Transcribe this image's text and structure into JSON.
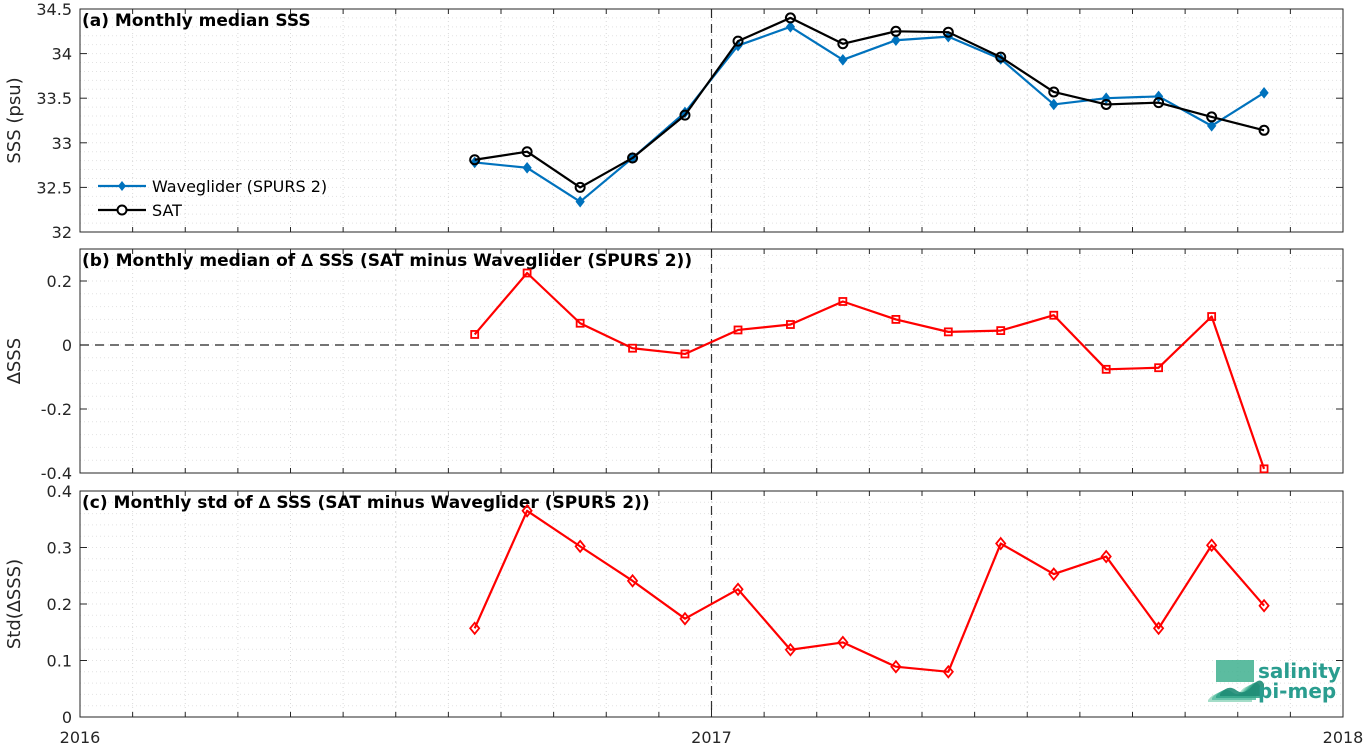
{
  "chart_data": [
    {
      "id": "a",
      "type": "line",
      "title": "(a) Monthly median SSS",
      "ylabel": "SSS (psu)",
      "xlim": [
        2016.0,
        2018.0
      ],
      "ylim": [
        32,
        34.5
      ],
      "yticks": [
        "32",
        "32.5",
        "33",
        "33.5",
        "34",
        "34.5"
      ],
      "ytick_values": [
        32,
        32.5,
        33,
        33.5,
        34,
        34.5
      ],
      "grid": true,
      "legend_position": "left",
      "series": [
        {
          "name": "Waveglider (SPURS 2)",
          "color": "#0072bd",
          "marker": "diamond-filled",
          "x": [
            2016.625,
            2016.708,
            2016.792,
            2016.875,
            2016.958,
            2017.042,
            2017.125,
            2017.208,
            2017.292,
            2017.375,
            2017.458,
            2017.542,
            2017.625,
            2017.708,
            2017.792,
            2017.875
          ],
          "values": [
            32.78,
            32.72,
            32.34,
            32.83,
            33.34,
            34.09,
            34.3,
            33.93,
            34.15,
            34.19,
            33.94,
            33.43,
            33.5,
            33.52,
            33.19,
            33.56
          ]
        },
        {
          "name": "SAT",
          "color": "#000000",
          "marker": "circle-open",
          "x": [
            2016.625,
            2016.708,
            2016.792,
            2016.875,
            2016.958,
            2017.042,
            2017.125,
            2017.208,
            2017.292,
            2017.375,
            2017.458,
            2017.542,
            2017.625,
            2017.708,
            2017.792,
            2017.875
          ],
          "values": [
            32.81,
            32.9,
            32.5,
            32.83,
            33.31,
            34.14,
            34.4,
            34.11,
            34.25,
            34.24,
            33.96,
            33.57,
            33.43,
            33.45,
            33.29,
            33.14
          ]
        }
      ]
    },
    {
      "id": "b",
      "type": "line",
      "title": "(b) Monthly median of ∆ SSS (SAT minus Waveglider (SPURS 2))",
      "ylabel": "∆SSS",
      "xlim": [
        2016.0,
        2018.0
      ],
      "ylim": [
        -0.4,
        0.3
      ],
      "yticks": [
        "-0.4",
        "-0.2",
        "0",
        "0.2"
      ],
      "ytick_values": [
        -0.4,
        -0.2,
        0,
        0.2
      ],
      "grid": true,
      "zero_line": true,
      "series": [
        {
          "color": "#ff0000",
          "marker": "square-open",
          "x": [
            2016.625,
            2016.708,
            2016.792,
            2016.875,
            2016.958,
            2017.042,
            2017.125,
            2017.208,
            2017.292,
            2017.375,
            2017.458,
            2017.542,
            2017.625,
            2017.708,
            2017.792,
            2017.875
          ],
          "values": [
            0.033,
            0.225,
            0.068,
            -0.01,
            -0.028,
            0.047,
            0.064,
            0.136,
            0.08,
            0.041,
            0.045,
            0.093,
            -0.076,
            -0.071,
            0.089,
            -0.387
          ]
        }
      ]
    },
    {
      "id": "c",
      "type": "line",
      "title": "(c) Monthly std of ∆ SSS (SAT minus Waveglider (SPURS 2))",
      "ylabel": "Std(∆SSS)",
      "xlim": [
        2016.0,
        2018.0
      ],
      "ylim": [
        0,
        0.4
      ],
      "yticks": [
        "0",
        "0.1",
        "0.2",
        "0.3",
        "0.4"
      ],
      "ytick_values": [
        0,
        0.1,
        0.2,
        0.3,
        0.4
      ],
      "xticks": [
        "2016",
        "2017",
        "2018"
      ],
      "xtick_values": [
        2016.0,
        2017.0,
        2018.0
      ],
      "grid": true,
      "series": [
        {
          "color": "#ff0000",
          "marker": "diamond-open",
          "x": [
            2016.625,
            2016.708,
            2016.792,
            2016.875,
            2016.958,
            2017.042,
            2017.125,
            2017.208,
            2017.292,
            2017.375,
            2017.458,
            2017.542,
            2017.625,
            2017.708,
            2017.792,
            2017.875
          ],
          "values": [
            0.157,
            0.365,
            0.302,
            0.241,
            0.174,
            0.226,
            0.119,
            0.132,
            0.089,
            0.08,
            0.307,
            0.253,
            0.284,
            0.157,
            0.304,
            0.197
          ]
        }
      ]
    }
  ],
  "divider_year": 2017.0,
  "logo": {
    "line1": "salinity",
    "line2": "pi-mep"
  }
}
